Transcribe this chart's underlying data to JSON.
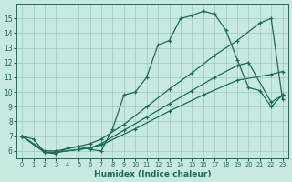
{
  "xlabel": "Humidex (Indice chaleur)",
  "xlim": [
    -0.5,
    23.5
  ],
  "ylim": [
    5.5,
    16.0
  ],
  "yticks": [
    6,
    7,
    8,
    9,
    10,
    11,
    12,
    13,
    14,
    15
  ],
  "xticks": [
    0,
    1,
    2,
    3,
    4,
    5,
    6,
    7,
    8,
    9,
    10,
    11,
    12,
    13,
    14,
    15,
    16,
    17,
    18,
    19,
    20,
    21,
    22,
    23
  ],
  "bg_color": "#c8e8e2",
  "line_color": "#1a6b5a",
  "line1_x": [
    0,
    1,
    2,
    3,
    4,
    5,
    6,
    7,
    8,
    9,
    10,
    11,
    12,
    13,
    14,
    15,
    16,
    17,
    18,
    19,
    20,
    21,
    22,
    23
  ],
  "line1_y": [
    7.0,
    6.8,
    5.9,
    5.8,
    6.2,
    6.3,
    6.1,
    6.0,
    7.5,
    9.8,
    10.0,
    11.0,
    13.2,
    13.5,
    15.0,
    15.2,
    15.5,
    15.3,
    14.2,
    12.2,
    10.3,
    10.1,
    9.0,
    9.8
  ],
  "line2_x": [
    0,
    2,
    3,
    5,
    6,
    7,
    9,
    11,
    13,
    15,
    17,
    19,
    21,
    22,
    23
  ],
  "line2_y": [
    7.0,
    6.0,
    6.0,
    6.3,
    6.5,
    6.8,
    7.8,
    9.0,
    10.2,
    11.3,
    12.5,
    13.5,
    14.7,
    15.0,
    9.5
  ],
  "line3_x": [
    0,
    2,
    3,
    5,
    6,
    7,
    9,
    11,
    13,
    15,
    17,
    19,
    20,
    22,
    23
  ],
  "line3_y": [
    7.0,
    5.9,
    5.9,
    6.1,
    6.2,
    6.5,
    7.4,
    8.3,
    9.2,
    10.1,
    11.0,
    11.8,
    12.0,
    9.3,
    9.8
  ],
  "line4_x": [
    0,
    2,
    3,
    5,
    6,
    7,
    10,
    13,
    16,
    19,
    22,
    23
  ],
  "line4_y": [
    7.0,
    5.9,
    5.9,
    6.1,
    6.2,
    6.4,
    7.5,
    8.7,
    9.8,
    10.8,
    11.2,
    11.4
  ]
}
